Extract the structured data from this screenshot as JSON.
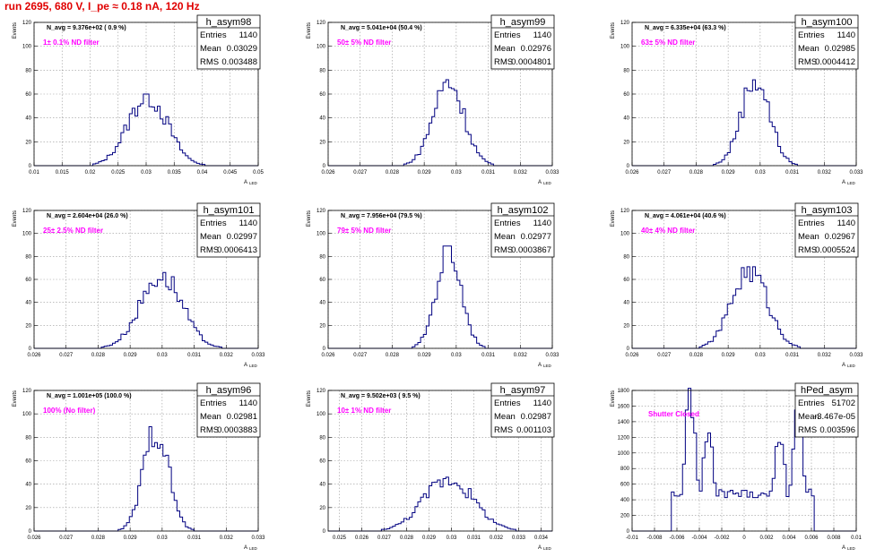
{
  "title": "run 2695,   680 V, I_pe ≈ 0.18 nA, 120 Hz",
  "yaxis_title": "Events",
  "xaxis_title": "A",
  "xaxis_subscript": "LED",
  "stat_labels": {
    "entries": "Entries",
    "mean": "Mean",
    "rms": "RMS"
  },
  "colors": {
    "title": "#e00000",
    "histogram": "#000080",
    "filter_label": "#ff00ff",
    "frame": "#000000",
    "grid": "#999999"
  },
  "chart_data": [
    {
      "type": "histogram",
      "name": "h_asym98",
      "navg": "N_avg = 9.376e+02 ( 0.9 %)",
      "filter": "1± 0.1% ND filter",
      "entries": "1140",
      "mean": "0.03029",
      "rms": "0.003488",
      "xlim": [
        0.01,
        0.05
      ],
      "ylim": [
        0,
        120
      ],
      "xticks": [
        "0.01",
        "0.015",
        "0.02",
        "0.025",
        "0.03",
        "0.035",
        "0.04",
        "0.045",
        "0.05"
      ],
      "yticks": [
        "0",
        "20",
        "40",
        "60",
        "80",
        "100",
        "120"
      ],
      "peak": {
        "x": 0.03,
        "y": 60
      },
      "mu": 0.03029,
      "sigma": 0.003488
    },
    {
      "type": "histogram",
      "name": "h_asym99",
      "navg": "N_avg = 5.041e+04 (50.4 %)",
      "filter": "50± 5% ND filter",
      "entries": "1140",
      "mean": "0.02976",
      "rms": "0.0004801",
      "xlim": [
        0.026,
        0.033
      ],
      "ylim": [
        0,
        120
      ],
      "xticks": [
        "0.026",
        "0.027",
        "0.028",
        "0.029",
        "0.03",
        "0.031",
        "0.032",
        "0.033"
      ],
      "yticks": [
        "0",
        "20",
        "40",
        "60",
        "80",
        "100",
        "120"
      ],
      "peak": {
        "x": 0.0298,
        "y": 72
      },
      "mu": 0.02976,
      "sigma": 0.0004801
    },
    {
      "type": "histogram",
      "name": "h_asym100",
      "navg": "N_avg = 6.335e+04 (63.3 %)",
      "filter": "63± 5% ND filter",
      "entries": "1140",
      "mean": "0.02985",
      "rms": "0.0004412",
      "xlim": [
        0.026,
        0.033
      ],
      "ylim": [
        0,
        120
      ],
      "xticks": [
        "0.026",
        "0.027",
        "0.028",
        "0.029",
        "0.03",
        "0.031",
        "0.032",
        "0.033"
      ],
      "yticks": [
        "0",
        "20",
        "40",
        "60",
        "80",
        "100",
        "120"
      ],
      "peak": {
        "x": 0.0301,
        "y": 75
      },
      "mu": 0.02985,
      "sigma": 0.0004412
    },
    {
      "type": "histogram",
      "name": "h_asym101",
      "navg": "N_avg = 2.604e+04 (26.0 %)",
      "filter": "25± 2.5% ND filter",
      "entries": "1140",
      "mean": "0.02997",
      "rms": "0.0006413",
      "xlim": [
        0.026,
        0.033
      ],
      "ylim": [
        0,
        120
      ],
      "xticks": [
        "0.026",
        "0.027",
        "0.028",
        "0.029",
        "0.03",
        "0.031",
        "0.032",
        "0.033"
      ],
      "yticks": [
        "0",
        "20",
        "40",
        "60",
        "80",
        "100",
        "120"
      ],
      "peak": {
        "x": 0.03,
        "y": 66
      },
      "mu": 0.02997,
      "sigma": 0.0006413
    },
    {
      "type": "histogram",
      "name": "h_asym102",
      "navg": "N_avg = 7.956e+04 (79.5 %)",
      "filter": "79± 5% ND filter",
      "entries": "1140",
      "mean": "0.02977",
      "rms": "0.0003867",
      "xlim": [
        0.026,
        0.033
      ],
      "ylim": [
        0,
        120
      ],
      "xticks": [
        "0.026",
        "0.027",
        "0.028",
        "0.029",
        "0.03",
        "0.031",
        "0.032",
        "0.033"
      ],
      "yticks": [
        "0",
        "20",
        "40",
        "60",
        "80",
        "100",
        "120"
      ],
      "peak": {
        "x": 0.0299,
        "y": 89
      },
      "mu": 0.02977,
      "sigma": 0.0003867
    },
    {
      "type": "histogram",
      "name": "h_asym103",
      "navg": "N_avg = 4.061e+04 (40.6 %)",
      "filter": "40± 4% ND filter",
      "entries": "1140",
      "mean": "0.02967",
      "rms": "0.0005524",
      "xlim": [
        0.026,
        0.033
      ],
      "ylim": [
        0,
        120
      ],
      "xticks": [
        "0.026",
        "0.027",
        "0.028",
        "0.029",
        "0.03",
        "0.031",
        "0.032",
        "0.033"
      ],
      "yticks": [
        "0",
        "20",
        "40",
        "60",
        "80",
        "100",
        "120"
      ],
      "peak": {
        "x": 0.0298,
        "y": 71
      },
      "mu": 0.02967,
      "sigma": 0.0005524
    },
    {
      "type": "histogram",
      "name": "h_asym96",
      "navg": "N_avg = 1.001e+05 (100.0 %)",
      "filter": "100% (No filter)",
      "entries": "1140",
      "mean": "0.02981",
      "rms": "0.0003883",
      "xlim": [
        0.026,
        0.033
      ],
      "ylim": [
        0,
        120
      ],
      "xticks": [
        "0.026",
        "0.027",
        "0.028",
        "0.029",
        "0.03",
        "0.031",
        "0.032",
        "0.033"
      ],
      "yticks": [
        "0",
        "20",
        "40",
        "60",
        "80",
        "100",
        "120"
      ],
      "peak": {
        "x": 0.0299,
        "y": 90
      },
      "mu": 0.02981,
      "sigma": 0.0003883
    },
    {
      "type": "histogram",
      "name": "h_asym97",
      "navg": "N_avg = 9.502e+03 ( 9.5 %)",
      "filter": "10± 1% ND filter",
      "entries": "1140",
      "mean": "0.02987",
      "rms": "0.001103",
      "xlim": [
        0.0245,
        0.0345
      ],
      "ylim": [
        0,
        120
      ],
      "xticks": [
        "0.025",
        "0.026",
        "0.027",
        "0.028",
        "0.029",
        "0.03",
        "0.031",
        "0.032",
        "0.033",
        "0.034"
      ],
      "yticks": [
        "0",
        "20",
        "40",
        "60",
        "80",
        "100",
        "120"
      ],
      "peak": {
        "x": 0.0302,
        "y": 46
      },
      "mu": 0.02987,
      "sigma": 0.001103
    },
    {
      "type": "histogram",
      "name": "hPed_asym",
      "navg": "",
      "filter": "Shutter Closed",
      "entries": "51702",
      "mean": "-3.467e-05",
      "rms": "0.003596",
      "xlim": [
        -0.01,
        0.01
      ],
      "ylim": [
        0,
        1800
      ],
      "xticks": [
        "-0.01",
        "-0.008",
        "-0.006",
        "-0.004",
        "-0.002",
        "0",
        "0.002",
        "0.004",
        "0.006",
        "0.008",
        "0.01"
      ],
      "yticks": [
        "0",
        "200",
        "400",
        "600",
        "800",
        "1000",
        "1200",
        "1400",
        "1600",
        "1800"
      ],
      "bimodal": [
        {
          "x": -0.0048,
          "y": 1720
        },
        {
          "x": -0.0032,
          "y": 1250
        },
        {
          "x": 0.0032,
          "y": 1260
        },
        {
          "x": 0.0048,
          "y": 1500
        }
      ],
      "valley": 480
    }
  ]
}
